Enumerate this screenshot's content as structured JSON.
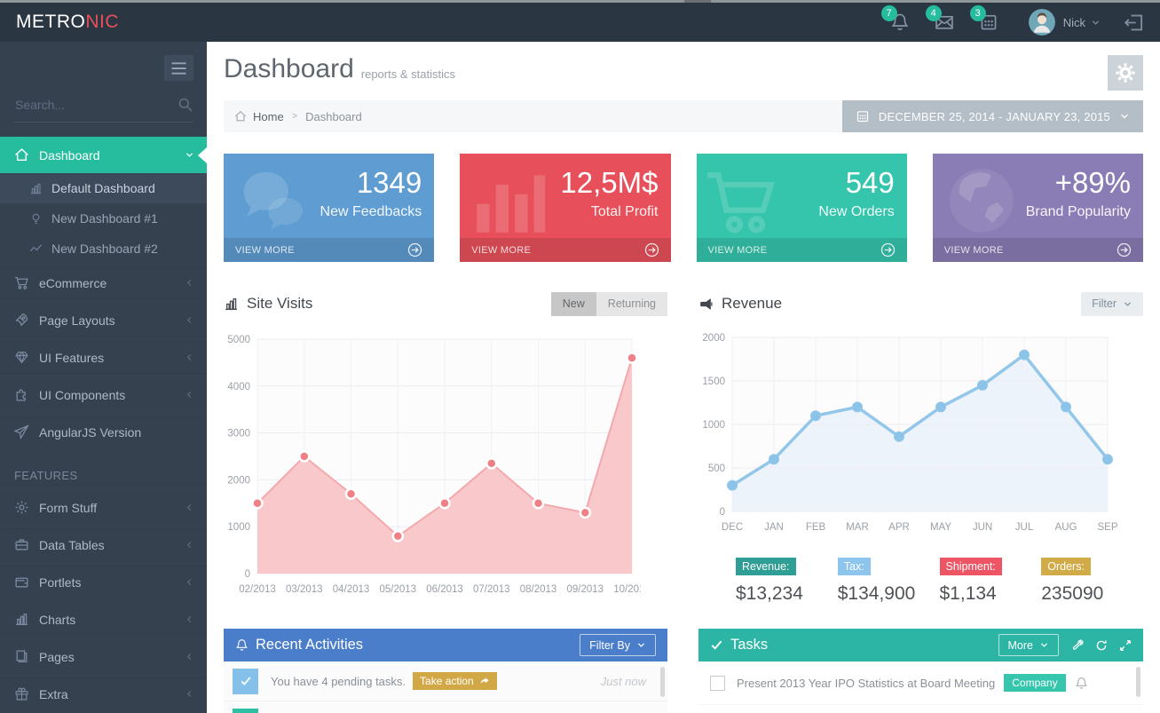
{
  "ui_colors": {
    "topbar_bg": "#2b3643",
    "sidebar_bg": "#364150",
    "accent_green": "#26bd9e",
    "activities_header": "#4a7dca",
    "tasks_header": "#2cb5a4",
    "date_range_bg": "#b4bec7"
  },
  "topbar": {
    "logo_primary": "METRO",
    "logo_accent": "NIC",
    "notifications": [
      {
        "icon": "bell-icon",
        "count": "7"
      },
      {
        "icon": "envelope-icon",
        "count": "4"
      },
      {
        "icon": "calendar-icon",
        "count": "3"
      }
    ],
    "user": {
      "name": "Nick"
    }
  },
  "sidebar": {
    "search_placeholder": "Search...",
    "menu": [
      {
        "label": "Dashboard",
        "icon": "home-icon",
        "chevron": "down",
        "active": true,
        "children": [
          {
            "label": "Default Dashboard",
            "icon": "chart-bars-icon",
            "highlight": true
          },
          {
            "label": "New Dashboard #1",
            "icon": "lightbulb-icon"
          },
          {
            "label": "New Dashboard #2",
            "icon": "trend-icon"
          }
        ]
      },
      {
        "label": "eCommerce",
        "icon": "cart-icon",
        "chevron": "left"
      },
      {
        "label": "Page Layouts",
        "icon": "rocket-icon",
        "chevron": "left"
      },
      {
        "label": "UI Features",
        "icon": "diamond-icon",
        "chevron": "left"
      },
      {
        "label": "UI Components",
        "icon": "puzzle-icon",
        "chevron": "left"
      },
      {
        "label": "AngularJS Version",
        "icon": "paper-plane-icon",
        "chevron": "none"
      },
      {
        "heading": "FEATURES"
      },
      {
        "label": "Form Stuff",
        "icon": "gear-icon",
        "chevron": "left"
      },
      {
        "label": "Data Tables",
        "icon": "briefcase-icon",
        "chevron": "left"
      },
      {
        "label": "Portlets",
        "icon": "wallet-icon",
        "chevron": "left"
      },
      {
        "label": "Charts",
        "icon": "chart-bars-icon",
        "chevron": "left"
      },
      {
        "label": "Pages",
        "icon": "pages-icon",
        "chevron": "left"
      },
      {
        "label": "Extra",
        "icon": "gift-icon",
        "chevron": "left"
      }
    ]
  },
  "page": {
    "title": "Dashboard",
    "subtitle": "reports & statistics",
    "breadcrumb": {
      "home": "Home",
      "current": "Dashboard"
    },
    "date_range": "DECEMBER 25, 2014 - JANUARY 23, 2015"
  },
  "tiles": [
    {
      "value": "1349",
      "label": "New Feedbacks",
      "action_label": "VIEW MORE",
      "color": "#5e9cd1",
      "icon": "comments-icon"
    },
    {
      "value": "12,5M$",
      "label": "Total Profit",
      "action_label": "VIEW MORE",
      "color": "#e7505a",
      "icon": "chart-bars-bg-icon"
    },
    {
      "value": "549",
      "label": "New Orders",
      "action_label": "VIEW MORE",
      "color": "#35c4ac",
      "icon": "cart-bg-icon"
    },
    {
      "value": "+89%",
      "label": "Brand Popularity",
      "action_label": "VIEW MORE",
      "color": "#8a7cb4",
      "icon": "globe-icon"
    }
  ],
  "panels": {
    "site_visits": {
      "title": "Site Visits",
      "icon": "chart-bars-icon",
      "toggles": [
        "New",
        "Returning"
      ],
      "active_toggle": "New"
    },
    "revenue": {
      "title": "Revenue",
      "icon": "megaphone-icon",
      "filter_label": "Filter",
      "stats": [
        {
          "label": "Revenue:",
          "value": "$13,234",
          "color": "#2f9e94"
        },
        {
          "label": "Tax:",
          "value": "$134,900",
          "color": "#8dc5ed"
        },
        {
          "label": "Shipment:",
          "value": "$1,134",
          "color": "#ed5564"
        },
        {
          "label": "Orders:",
          "value": "235090",
          "color": "#d2ab49"
        }
      ]
    },
    "recent_activities": {
      "title": "Recent Activities",
      "icon": "bell-icon",
      "filter_label": "Filter By",
      "items": [
        {
          "icon": "check-icon",
          "icon_color": "#85c0ea",
          "text": "You have 4 pending tasks.",
          "action_label": "Take action",
          "action_color": "#d2a847",
          "time": "Just now"
        },
        {
          "icon": "check-icon",
          "icon_color": "#2fbfa5",
          "text": "",
          "action_label": "",
          "time": ""
        }
      ]
    },
    "tasks": {
      "title": "Tasks",
      "icon": "check-icon",
      "more_label": "More",
      "toolbar_icons": [
        "wrench-icon",
        "refresh-icon",
        "expand-icon"
      ],
      "items": [
        {
          "text": "Present 2013 Year IPO Statistics at Board Meeting",
          "tag": "Company",
          "tag_color": "#36c6ad"
        }
      ]
    }
  },
  "chart_data": [
    {
      "id": "site_visits",
      "type": "area",
      "title": "Site Visits",
      "categories": [
        "02/2013",
        "03/2013",
        "04/2013",
        "05/2013",
        "06/2013",
        "07/2013",
        "08/2013",
        "09/2013",
        "10/2013"
      ],
      "values": [
        1500,
        2500,
        1700,
        800,
        1500,
        2350,
        1500,
        1300,
        4600
      ],
      "ylim": [
        0,
        5000
      ],
      "ytick_step": 1000,
      "grid": true,
      "legend_position": "none",
      "xlabel": "",
      "ylabel": "",
      "colors": {
        "line": "#f3a9ac",
        "fill": "#f9c8ca",
        "point": "#ef8186",
        "point_stroke": "#ffffff"
      }
    },
    {
      "id": "revenue",
      "type": "line",
      "title": "Revenue",
      "categories": [
        "DEC",
        "JAN",
        "FEB",
        "MAR",
        "APR",
        "MAY",
        "JUN",
        "JUL",
        "AUG",
        "SEP"
      ],
      "values": [
        300,
        600,
        1100,
        1200,
        860,
        1200,
        1450,
        1800,
        1200,
        600
      ],
      "ylim": [
        0,
        2000
      ],
      "ytick_step": 500,
      "grid": true,
      "legend_position": "none",
      "xlabel": "",
      "ylabel": "",
      "colors": {
        "line": "#93c7e9",
        "fill": "#edf3fa",
        "point": "#8cc3e8",
        "point_stroke": "#93c7e9"
      }
    }
  ]
}
